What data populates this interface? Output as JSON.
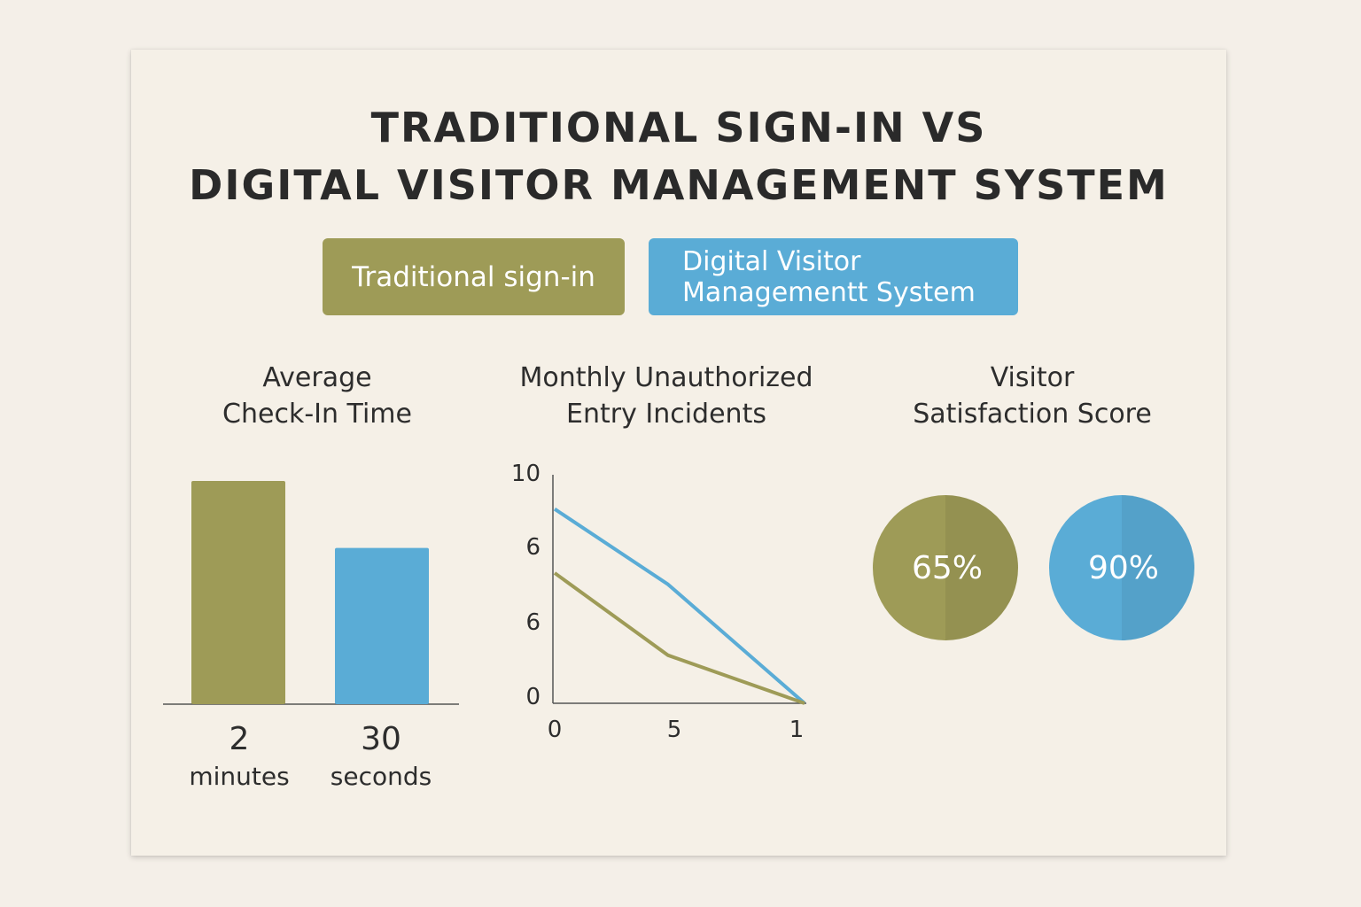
{
  "title": {
    "line1": "TRADITIONAL SIGN-IN VS",
    "line2": "DIGITAL VISITOR MANAGEMENT SYSTEM"
  },
  "legend": {
    "traditional": "Traditional sign-in",
    "digital_line1": "Digital Visitor",
    "digital_line2": "Managementt System"
  },
  "colors": {
    "traditional": "#9e9b57",
    "digital": "#5aacd6",
    "background": "#f5f0e7"
  },
  "panels": {
    "checkin_title_line1": "Average",
    "checkin_title_line2": "Check-In Time",
    "incidents_title_line1": "Monthly Unauthorized",
    "incidents_title_line2": "Entry Incidents",
    "satisfaction_title_line1": "Visitor",
    "satisfaction_title_line2": "Satisfaction Score"
  },
  "chart_data": [
    {
      "type": "bar",
      "title": "Average Check-In Time",
      "categories": [
        "Traditional sign-in",
        "Digital Visitor Managementt System"
      ],
      "values": [
        1.0,
        0.7
      ],
      "value_labels": [
        {
          "number": "2",
          "unit": "minutes"
        },
        {
          "number": "30",
          "unit": "seconds"
        }
      ],
      "colors": [
        "#9e9b57",
        "#5aacd6"
      ],
      "ylim": [
        0,
        1
      ]
    },
    {
      "type": "line",
      "title": "Monthly Unauthorized Entry Incidents",
      "x": [
        0,
        5,
        1
      ],
      "xtick_labels": [
        "0",
        "5",
        "1"
      ],
      "ytick_labels": [
        "10",
        "6",
        "6",
        "0"
      ],
      "series": [
        {
          "name": "Digital Visitor Managementt System",
          "color": "#5aacd6",
          "values": [
            8.5,
            5.2,
            0
          ]
        },
        {
          "name": "Traditional sign-in",
          "color": "#9e9b57",
          "values": [
            5.7,
            2.1,
            0
          ]
        }
      ],
      "ylim": [
        0,
        10
      ]
    },
    {
      "type": "pie",
      "title": "Visitor Satisfaction Score",
      "slices": [
        {
          "name": "Traditional sign-in",
          "value": 65,
          "label": "65%",
          "color": "#9e9b57"
        },
        {
          "name": "Digital Visitor Managementt System",
          "value": 90,
          "label": "90%",
          "color": "#5aacd6"
        }
      ]
    }
  ]
}
